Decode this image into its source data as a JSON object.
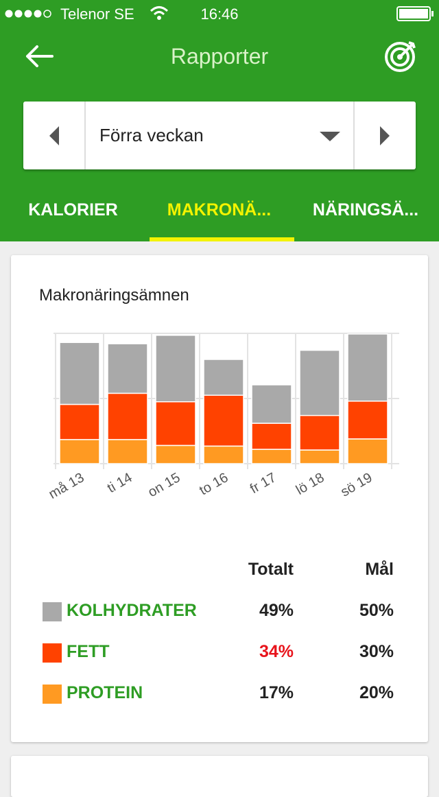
{
  "status": {
    "carrier": "Telenor SE",
    "time": "16:46"
  },
  "header": {
    "title": "Rapporter"
  },
  "selector": {
    "label": "Förra veckan"
  },
  "tabs": {
    "items": [
      "KALORIER",
      "MAKRONÄ...",
      "NÄRINGSÄ..."
    ],
    "active": 1
  },
  "chart_data": {
    "type": "stacked_bar",
    "title": "Makronäringsämnen",
    "categories": [
      "må 13",
      "ti 14",
      "on 15",
      "to 16",
      "fr 17",
      "lö 18",
      "sö 19"
    ],
    "series": [
      {
        "name": "PROTEIN",
        "color": "#ff9a22",
        "values": [
          0.37,
          0.37,
          0.28,
          0.27,
          0.22,
          0.21,
          0.38
        ]
      },
      {
        "name": "FETT",
        "color": "#ff4200",
        "values": [
          0.54,
          0.71,
          0.67,
          0.78,
          0.4,
          0.53,
          0.58
        ]
      },
      {
        "name": "KOLHYDRATER",
        "color": "#a9a9a9",
        "values": [
          0.95,
          0.76,
          1.02,
          0.55,
          0.59,
          1.0,
          1.03
        ]
      }
    ],
    "ylim": [
      0,
      2
    ],
    "yticks": [
      0,
      1,
      2
    ],
    "grid": true
  },
  "summary": {
    "headers": [
      "Totalt",
      "Mål"
    ],
    "rows": [
      {
        "series": 2,
        "total": "49%",
        "goal": "50%",
        "highlight": false
      },
      {
        "series": 1,
        "total": "34%",
        "goal": "30%",
        "highlight": true
      },
      {
        "series": 0,
        "total": "17%",
        "goal": "20%",
        "highlight": false
      }
    ]
  }
}
